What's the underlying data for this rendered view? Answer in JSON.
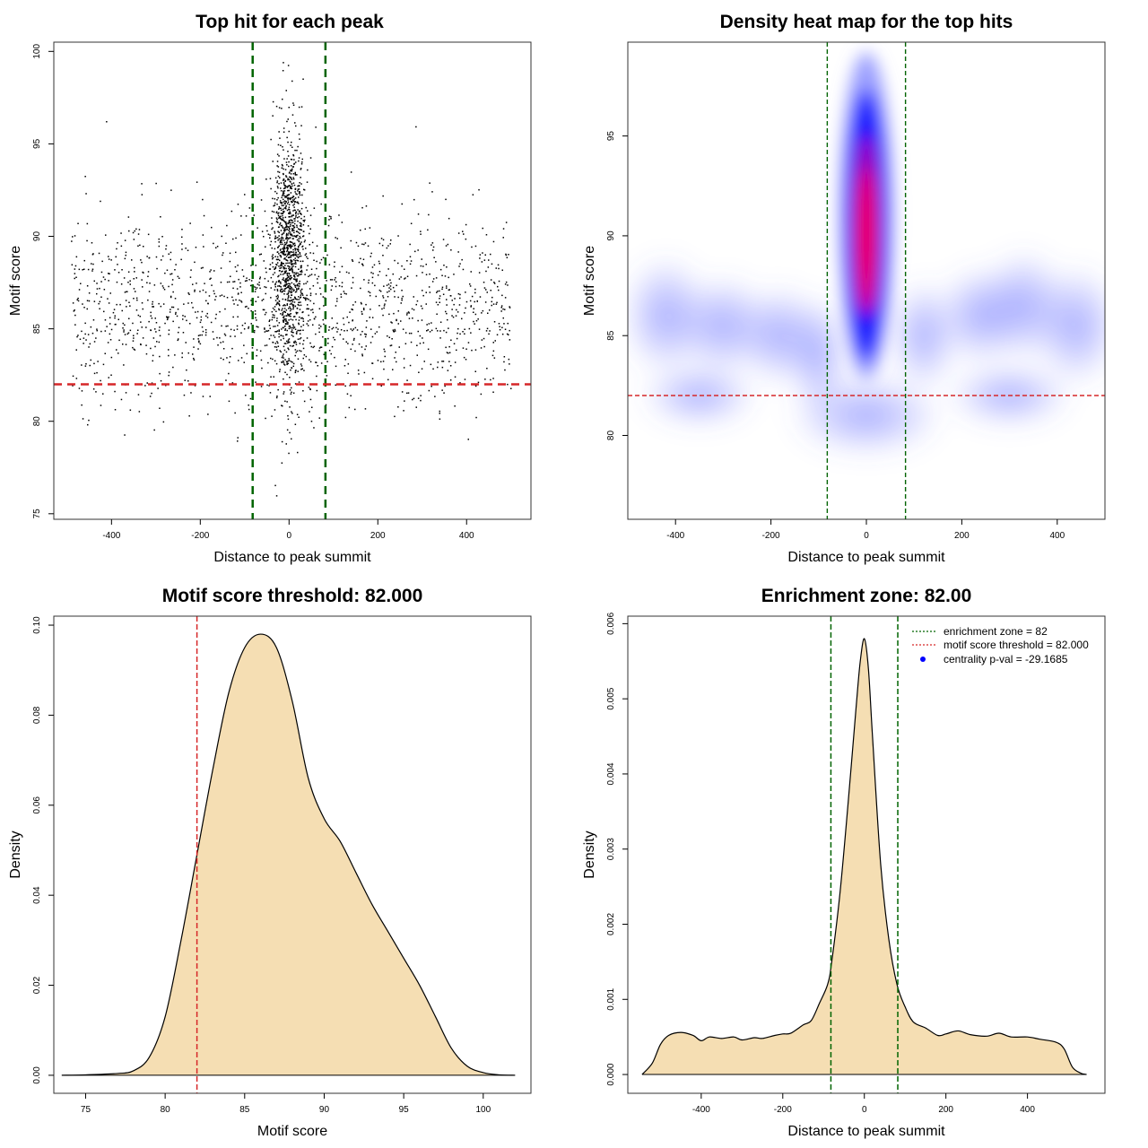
{
  "chart_data": [
    {
      "id": "scatter",
      "type": "scatter",
      "title": "Top hit for each peak",
      "xlabel": "Distance to peak summit",
      "ylabel": "Motif score",
      "xlim": [
        -530,
        545
      ],
      "ylim": [
        74.7,
        100.5
      ],
      "xticks": [
        -400,
        -200,
        0,
        200,
        400
      ],
      "yticks": [
        75,
        80,
        85,
        90,
        95,
        100
      ],
      "point_color": "#000000",
      "point_count": 2600,
      "vlines": [
        {
          "x": -82,
          "color": "#006400",
          "style": "dashed"
        },
        {
          "x": 82,
          "color": "#006400",
          "style": "dashed"
        }
      ],
      "hlines": [
        {
          "y": 82,
          "color": "#d62728",
          "style": "dashed"
        }
      ]
    },
    {
      "id": "heatmap",
      "type": "heatmap",
      "title": "Density heat map for the top hits",
      "xlabel": "Distance to peak summit",
      "ylabel": "Motif score",
      "xlim": [
        -500,
        500
      ],
      "ylim": [
        75.8,
        99.7
      ],
      "xticks": [
        -400,
        -200,
        0,
        200,
        400
      ],
      "yticks": [
        80,
        85,
        90,
        95
      ],
      "colors": [
        "#ffffff",
        "#0000ff",
        "#ff0000"
      ],
      "vlines": [
        {
          "x": -82,
          "color": "#006400",
          "style": "dashed"
        },
        {
          "x": 82,
          "color": "#006400",
          "style": "dashed"
        }
      ],
      "hlines": [
        {
          "y": 82,
          "color": "#d62728",
          "style": "dashed"
        }
      ]
    },
    {
      "id": "score-density",
      "type": "area",
      "title": "Motif score threshold: 82.000",
      "xlabel": "Motif score",
      "ylabel": "Density",
      "xlim": [
        73,
        103
      ],
      "ylim": [
        -0.004,
        0.102
      ],
      "xticks": [
        75,
        80,
        85,
        90,
        95,
        100
      ],
      "yticks": [
        0.0,
        0.02,
        0.04,
        0.06,
        0.08,
        0.1
      ],
      "ytick_labels": [
        "0.00",
        "0.02",
        "0.04",
        "0.06",
        "0.08",
        "0.10"
      ],
      "fill": "#f5deb3",
      "x": [
        73.5,
        75,
        77,
        78,
        79,
        80,
        81,
        82,
        83,
        84,
        85,
        86,
        87,
        88,
        89,
        90,
        91,
        92,
        93,
        94,
        95,
        96,
        97,
        98,
        99,
        100,
        101,
        102
      ],
      "y": [
        0.0,
        0.0001,
        0.0004,
        0.001,
        0.004,
        0.013,
        0.03,
        0.049,
        0.068,
        0.085,
        0.095,
        0.098,
        0.095,
        0.083,
        0.066,
        0.057,
        0.052,
        0.045,
        0.038,
        0.032,
        0.026,
        0.02,
        0.013,
        0.006,
        0.002,
        0.0006,
        0.0001,
        0.0
      ],
      "vlines": [
        {
          "x": 82,
          "color": "#d62728",
          "style": "dashed"
        }
      ]
    },
    {
      "id": "distance-density",
      "type": "area",
      "title": "Enrichment zone: 82.00",
      "xlabel": "Distance to peak summit",
      "ylabel": "Density",
      "xlim": [
        -580,
        590
      ],
      "ylim": [
        -0.00025,
        0.0061
      ],
      "xticks": [
        -400,
        -200,
        0,
        200,
        400
      ],
      "yticks": [
        0.0,
        0.001,
        0.002,
        0.003,
        0.004,
        0.005,
        0.006
      ],
      "ytick_labels": [
        "0.000",
        "0.001",
        "0.002",
        "0.003",
        "0.004",
        "0.005",
        "0.006"
      ],
      "fill": "#f5deb3",
      "x": [
        -545,
        -520,
        -500,
        -480,
        -450,
        -420,
        -400,
        -380,
        -350,
        -320,
        -300,
        -270,
        -250,
        -220,
        -200,
        -180,
        -150,
        -130,
        -110,
        -90,
        -80,
        -60,
        -40,
        -20,
        -10,
        0,
        10,
        20,
        40,
        60,
        80,
        100,
        120,
        150,
        180,
        200,
        230,
        260,
        300,
        330,
        360,
        400,
        430,
        470,
        490,
        510,
        530,
        545
      ],
      "y": [
        0.0,
        0.00015,
        0.0004,
        0.00052,
        0.00056,
        0.00052,
        0.00045,
        0.0005,
        0.00048,
        0.0005,
        0.00046,
        0.00049,
        0.00048,
        0.00052,
        0.00054,
        0.00055,
        0.00066,
        0.00072,
        0.00095,
        0.0012,
        0.0015,
        0.0024,
        0.0036,
        0.0049,
        0.0055,
        0.0058,
        0.0054,
        0.0045,
        0.0028,
        0.0018,
        0.0012,
        0.0009,
        0.0007,
        0.00062,
        0.00052,
        0.00054,
        0.00058,
        0.00053,
        0.00051,
        0.00055,
        0.0005,
        0.0005,
        0.00047,
        0.00043,
        0.00034,
        0.0001,
        2e-05,
        0.0
      ],
      "vlines": [
        {
          "x": -82,
          "color": "#006400",
          "style": "dashed"
        },
        {
          "x": 82,
          "color": "#006400",
          "style": "dashed"
        }
      ],
      "legend": {
        "position": "top-right",
        "entries": [
          {
            "label": "enrichment zone = 82",
            "color": "#006400",
            "kind": "dotted-line"
          },
          {
            "label": "motif score threshold = 82.000",
            "color": "#d62728",
            "kind": "dotted-line"
          },
          {
            "label": "centrality p-val = -29.1685",
            "color": "#0000ff",
            "kind": "point"
          }
        ]
      }
    }
  ]
}
